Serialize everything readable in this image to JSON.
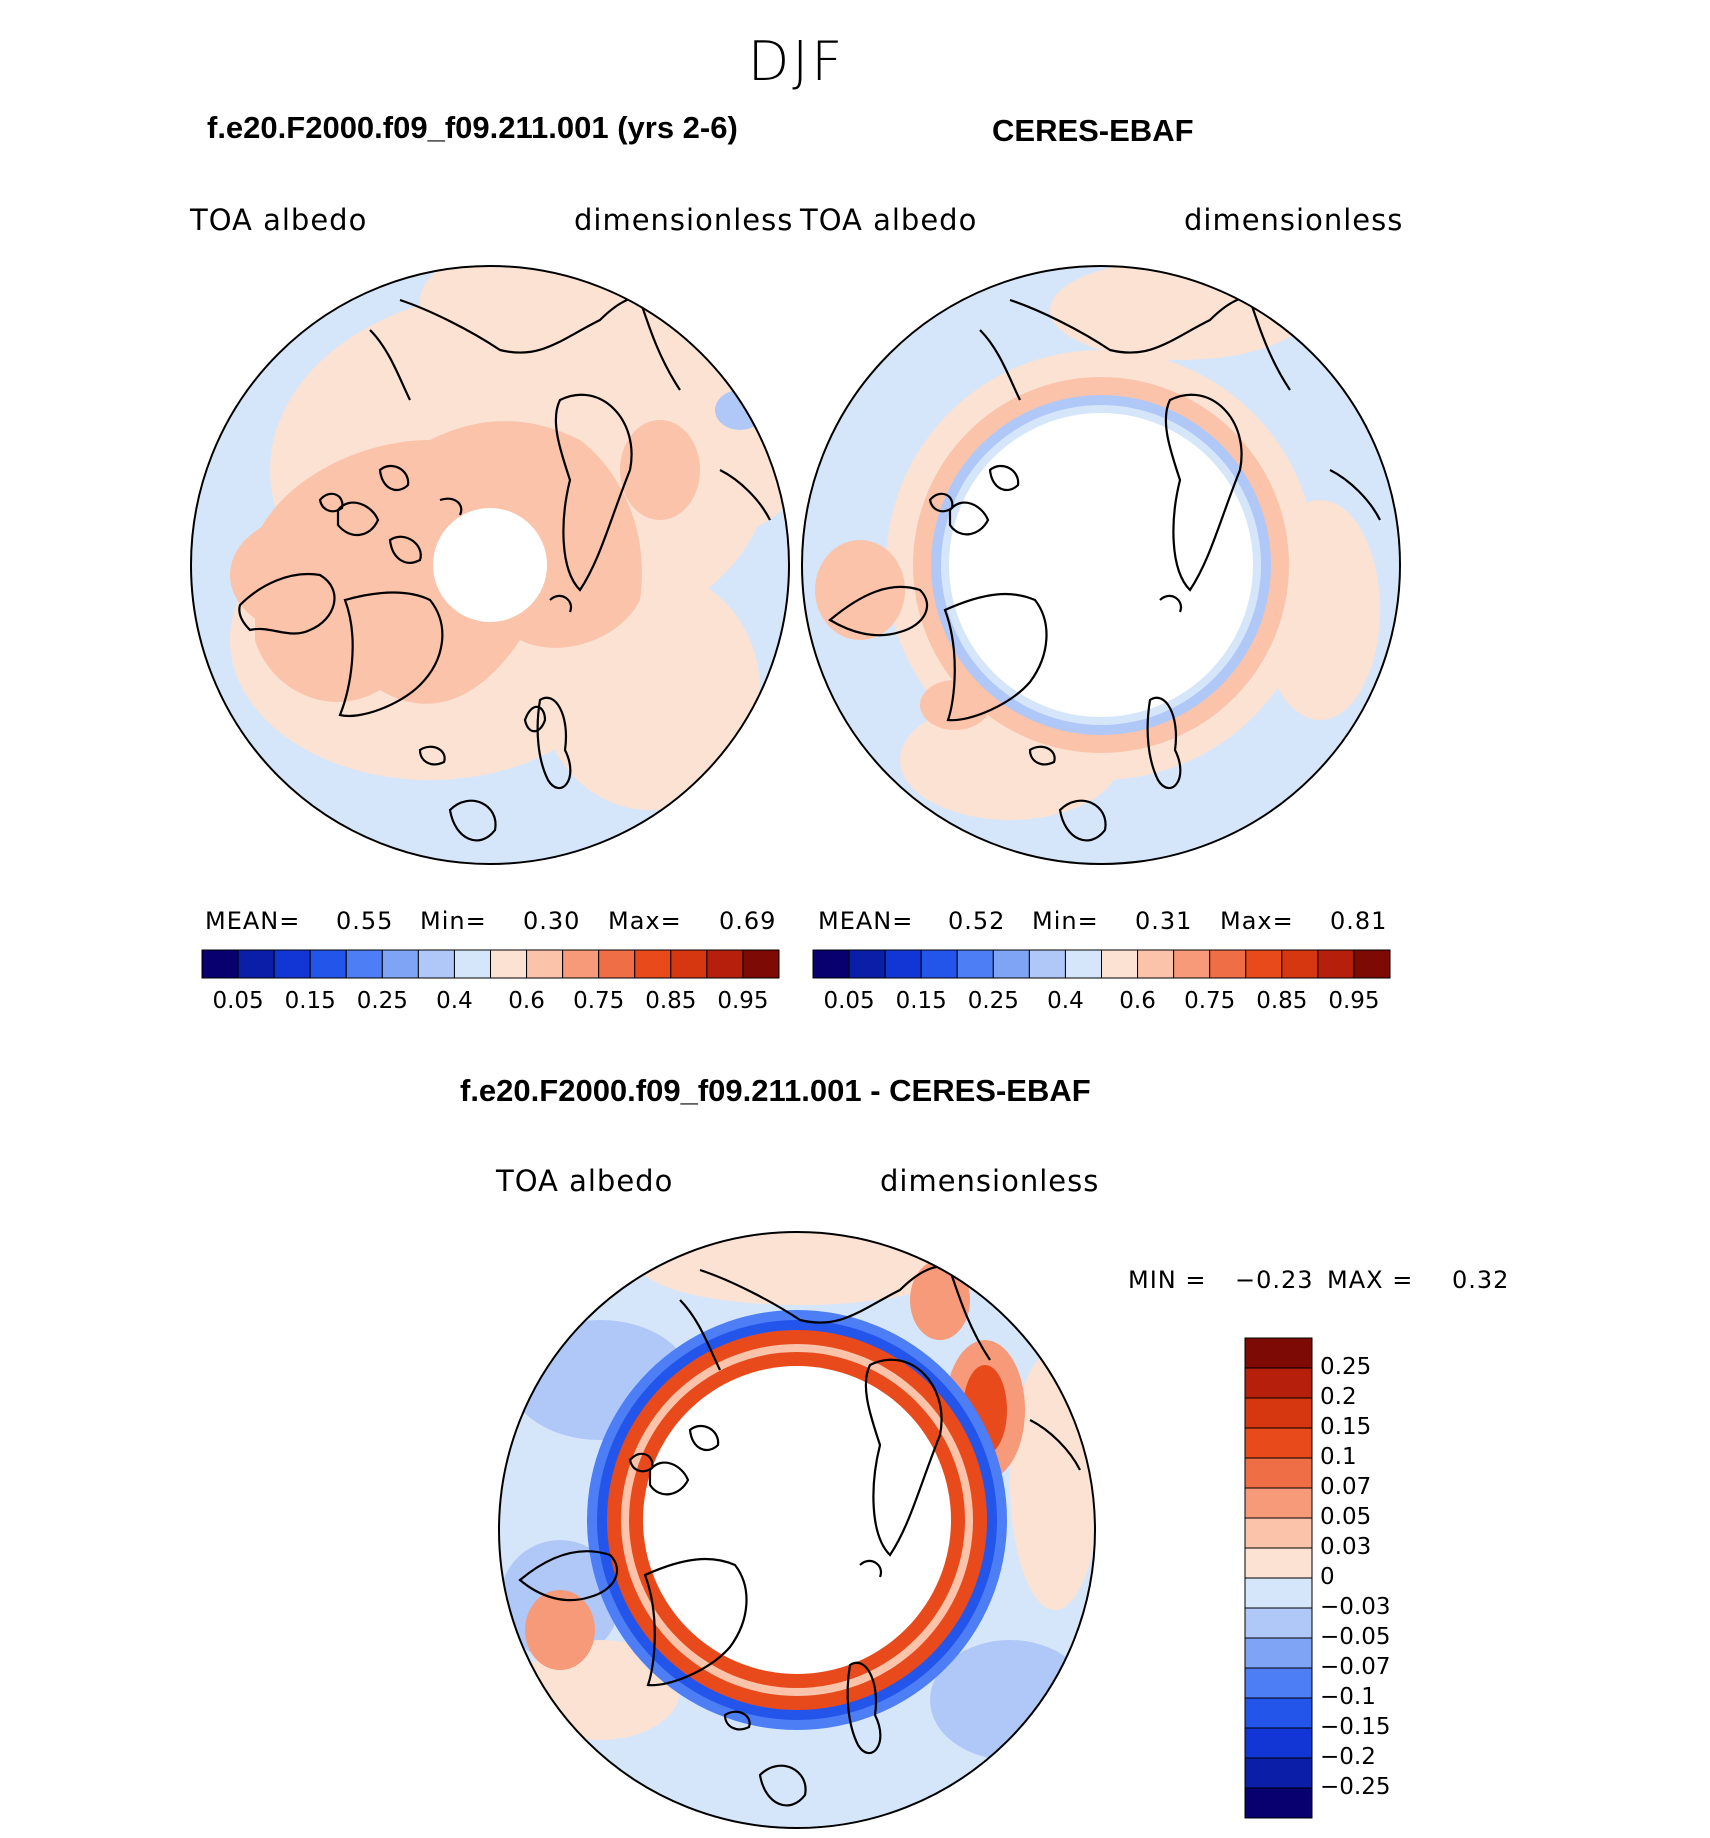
{
  "season": "DJF",
  "chart_data": [
    {
      "type": "heatmap",
      "projection": "north polar stereographic",
      "title": "f.e20.F2000.f09_f09.211.001 (yrs 2-6)",
      "left_label": "TOA albedo",
      "right_label": "dimensionless",
      "stats": {
        "mean_label": "MEAN=",
        "mean": "0.55",
        "min_label": "Min=",
        "min": "0.30",
        "max_label": "Max=",
        "max": "0.69"
      },
      "colorbar_ticks": [
        "0.05",
        "0.15",
        "0.25",
        "0.4",
        "0.6",
        "0.75",
        "0.85",
        "0.95"
      ],
      "colorbar_levels": [
        0.05,
        0.1,
        0.15,
        0.2,
        0.25,
        0.3,
        0.4,
        0.5,
        0.6,
        0.7,
        0.75,
        0.8,
        0.85,
        0.9,
        0.95
      ]
    },
    {
      "type": "heatmap",
      "projection": "north polar stereographic",
      "title": "CERES-EBAF",
      "left_label": "TOA albedo",
      "right_label": "dimensionless",
      "stats": {
        "mean_label": "MEAN=",
        "mean": "0.52",
        "min_label": "Min=",
        "min": "0.31",
        "max_label": "Max=",
        "max": "0.81"
      },
      "colorbar_ticks": [
        "0.05",
        "0.15",
        "0.25",
        "0.4",
        "0.6",
        "0.75",
        "0.85",
        "0.95"
      ],
      "colorbar_levels": [
        0.05,
        0.1,
        0.15,
        0.2,
        0.25,
        0.3,
        0.4,
        0.5,
        0.6,
        0.7,
        0.75,
        0.8,
        0.85,
        0.9,
        0.95
      ]
    },
    {
      "type": "heatmap",
      "projection": "north polar stereographic",
      "title": "f.e20.F2000.f09_f09.211.001 - CERES-EBAF",
      "left_label": "TOA albedo",
      "right_label": "dimensionless",
      "stats": {
        "min_label": "MIN =",
        "min": "−0.23",
        "max_label": "MAX =",
        "max": "0.32"
      },
      "colorbar_ticks": [
        "0.25",
        "0.2",
        "0.15",
        "0.1",
        "0.07",
        "0.05",
        "0.03",
        "0",
        "−0.03",
        "−0.05",
        "−0.07",
        "−0.1",
        "−0.15",
        "−0.2",
        "−0.25"
      ]
    }
  ],
  "palette16": [
    "#08006e",
    "#0b1ea8",
    "#1236d6",
    "#2455eb",
    "#4d7ef5",
    "#7fa3f5",
    "#b0c8f7",
    "#d6e6fa",
    "#fbe2d3",
    "#fac3aa",
    "#f69a7a",
    "#f06e45",
    "#e84a1c",
    "#d63710",
    "#b51f0b",
    "#7d0a05"
  ],
  "colors": {
    "land_outline": "#000000",
    "missing": "#ffffff"
  }
}
